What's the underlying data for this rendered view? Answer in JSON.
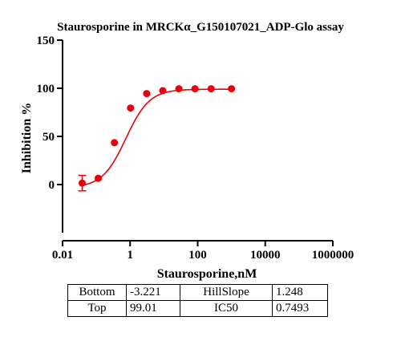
{
  "chart_data": {
    "type": "scatter",
    "title": "Staurosporine in MRCKα_G150107021_ADP-Glo assay",
    "xlabel": "Staurosporine,nM",
    "ylabel": "Inhibition %",
    "xscale": "log",
    "xlim": [
      0.01,
      1000000
    ],
    "ylim": [
      -50,
      150
    ],
    "x_ticks": [
      "0.01",
      "1",
      "100",
      "10000",
      "1000000"
    ],
    "y_ticks": [
      "0",
      "50",
      "100",
      "150"
    ],
    "y_tick_values": [
      0,
      50,
      100,
      150
    ],
    "x_tick_values": [
      0.01,
      1,
      100,
      10000,
      1000000
    ],
    "point_color": "#e8000b",
    "points": [
      {
        "x": 0.0381,
        "y": 1.5,
        "err": 8
      },
      {
        "x": 0.114,
        "y": 6.5,
        "err": 0
      },
      {
        "x": 0.343,
        "y": 43.5,
        "err": 0
      },
      {
        "x": 1.03,
        "y": 79.5,
        "err": 0
      },
      {
        "x": 3.09,
        "y": 94.5,
        "err": 0
      },
      {
        "x": 9.26,
        "y": 97.5,
        "err": 0
      },
      {
        "x": 27.8,
        "y": 99.5,
        "err": 0
      },
      {
        "x": 83.3,
        "y": 99.5,
        "err": 0
      },
      {
        "x": 250,
        "y": 99.5,
        "err": 0
      },
      {
        "x": 1000,
        "y": 99.5,
        "err": 0
      }
    ],
    "fit": {
      "bottom": -3.221,
      "top": 99.01,
      "hillslope": 1.248,
      "ic50": 0.7493
    }
  },
  "params_table": [
    [
      "Bottom",
      "-3.221",
      "HillSlope",
      "1.248"
    ],
    [
      "Top",
      "99.01",
      "IC50",
      "0.7493"
    ]
  ]
}
